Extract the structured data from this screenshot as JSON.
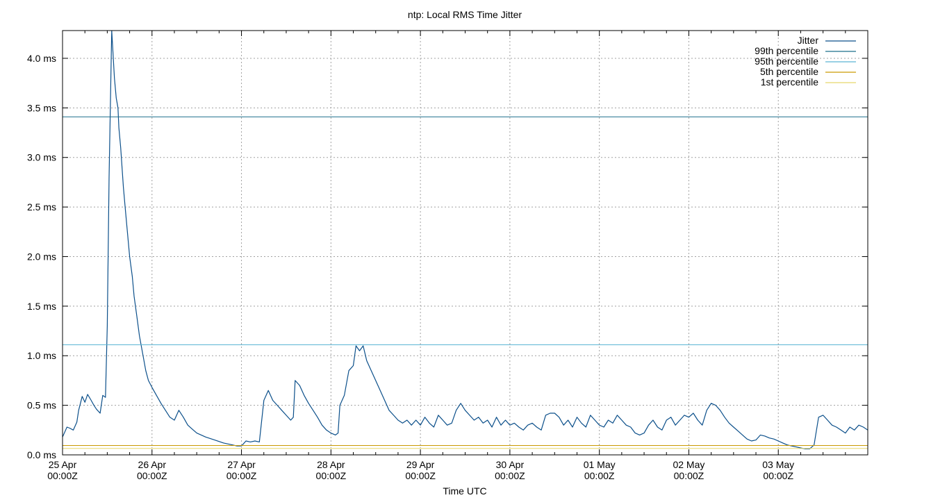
{
  "chart_data": {
    "type": "line",
    "title": "ntp: Local RMS Time Jitter",
    "xlabel": "Time UTC",
    "ylabel": "",
    "ylim": [
      0,
      4.28
    ],
    "y_unit": "ms",
    "yticks": [
      0.0,
      0.5,
      1.0,
      1.5,
      2.0,
      2.5,
      3.0,
      3.5,
      4.0
    ],
    "ytick_labels": [
      "0.0 ms",
      "0.5 ms",
      "1.0 ms",
      "1.5 ms",
      "2.0 ms",
      "2.5 ms",
      "3.0 ms",
      "3.5 ms",
      "4.0 ms"
    ],
    "xlim_days": [
      0,
      9
    ],
    "xticks": [
      {
        "day": 0,
        "line1": "25 Apr",
        "line2": "00:00Z"
      },
      {
        "day": 1,
        "line1": "26 Apr",
        "line2": "00:00Z"
      },
      {
        "day": 2,
        "line1": "27 Apr",
        "line2": "00:00Z"
      },
      {
        "day": 3,
        "line1": "28 Apr",
        "line2": "00:00Z"
      },
      {
        "day": 4,
        "line1": "29 Apr",
        "line2": "00:00Z"
      },
      {
        "day": 5,
        "line1": "30 Apr",
        "line2": "00:00Z"
      },
      {
        "day": 6,
        "line1": "01 May",
        "line2": "00:00Z"
      },
      {
        "day": 7,
        "line1": "02 May",
        "line2": "00:00Z"
      },
      {
        "day": 8,
        "line1": "03 May",
        "line2": "00:00Z"
      }
    ],
    "grid": true,
    "legend_position": "top-right",
    "series": [
      {
        "name": "Jitter",
        "color": "#0b4f8a",
        "x": [
          0.0,
          0.05,
          0.08,
          0.12,
          0.16,
          0.18,
          0.22,
          0.25,
          0.28,
          0.32,
          0.35,
          0.38,
          0.42,
          0.45,
          0.48,
          0.5,
          0.52,
          0.55,
          0.58,
          0.6,
          0.62,
          0.63,
          0.65,
          0.68,
          0.7,
          0.72,
          0.75,
          0.78,
          0.8,
          0.83,
          0.86,
          0.9,
          0.93,
          0.96,
          1.0,
          1.05,
          1.1,
          1.15,
          1.2,
          1.25,
          1.3,
          1.35,
          1.4,
          1.45,
          1.5,
          1.6,
          1.7,
          1.8,
          1.9,
          1.95,
          2.0,
          2.05,
          2.1,
          2.15,
          2.2,
          2.25,
          2.3,
          2.35,
          2.4,
          2.45,
          2.5,
          2.55,
          2.58,
          2.6,
          2.65,
          2.7,
          2.75,
          2.8,
          2.85,
          2.9,
          2.95,
          3.0,
          3.05,
          3.08,
          3.1,
          3.15,
          3.2,
          3.25,
          3.28,
          3.32,
          3.36,
          3.4,
          3.45,
          3.5,
          3.55,
          3.6,
          3.65,
          3.7,
          3.75,
          3.8,
          3.85,
          3.9,
          3.95,
          4.0,
          4.05,
          4.1,
          4.15,
          4.2,
          4.25,
          4.3,
          4.35,
          4.4,
          4.45,
          4.5,
          4.55,
          4.6,
          4.65,
          4.7,
          4.75,
          4.8,
          4.85,
          4.9,
          4.95,
          5.0,
          5.05,
          5.1,
          5.15,
          5.2,
          5.25,
          5.3,
          5.35,
          5.4,
          5.45,
          5.5,
          5.55,
          5.6,
          5.65,
          5.7,
          5.75,
          5.8,
          5.85,
          5.9,
          5.95,
          6.0,
          6.05,
          6.1,
          6.15,
          6.2,
          6.25,
          6.3,
          6.35,
          6.4,
          6.45,
          6.5,
          6.55,
          6.6,
          6.65,
          6.7,
          6.75,
          6.8,
          6.85,
          6.9,
          6.95,
          7.0,
          7.05,
          7.1,
          7.15,
          7.2,
          7.25,
          7.3,
          7.35,
          7.4,
          7.45,
          7.5,
          7.55,
          7.6,
          7.65,
          7.7,
          7.75,
          7.8,
          7.85,
          7.9,
          7.95,
          8.0,
          8.05,
          8.1,
          8.15,
          8.2,
          8.25,
          8.3,
          8.35,
          8.4,
          8.45,
          8.5,
          8.55,
          8.6,
          8.65,
          8.7,
          8.75,
          8.8,
          8.85,
          8.9,
          8.95,
          9.0
        ],
        "y": [
          0.18,
          0.28,
          0.27,
          0.25,
          0.33,
          0.45,
          0.59,
          0.53,
          0.61,
          0.55,
          0.5,
          0.46,
          0.42,
          0.6,
          0.58,
          1.3,
          2.8,
          4.28,
          3.8,
          3.6,
          3.5,
          3.3,
          3.1,
          2.7,
          2.5,
          2.3,
          2.0,
          1.8,
          1.6,
          1.4,
          1.2,
          1.0,
          0.85,
          0.75,
          0.68,
          0.6,
          0.52,
          0.45,
          0.38,
          0.35,
          0.45,
          0.38,
          0.3,
          0.26,
          0.22,
          0.18,
          0.15,
          0.12,
          0.1,
          0.09,
          0.09,
          0.14,
          0.13,
          0.14,
          0.13,
          0.55,
          0.65,
          0.55,
          0.5,
          0.45,
          0.4,
          0.35,
          0.38,
          0.75,
          0.7,
          0.6,
          0.52,
          0.45,
          0.38,
          0.3,
          0.25,
          0.22,
          0.2,
          0.22,
          0.5,
          0.6,
          0.85,
          0.9,
          1.1,
          1.05,
          1.1,
          0.95,
          0.85,
          0.75,
          0.65,
          0.55,
          0.45,
          0.4,
          0.35,
          0.32,
          0.35,
          0.3,
          0.35,
          0.3,
          0.38,
          0.32,
          0.28,
          0.4,
          0.35,
          0.3,
          0.32,
          0.45,
          0.52,
          0.45,
          0.4,
          0.35,
          0.38,
          0.32,
          0.35,
          0.28,
          0.38,
          0.3,
          0.35,
          0.3,
          0.32,
          0.28,
          0.25,
          0.3,
          0.32,
          0.28,
          0.25,
          0.4,
          0.42,
          0.42,
          0.38,
          0.3,
          0.35,
          0.28,
          0.38,
          0.32,
          0.28,
          0.4,
          0.35,
          0.3,
          0.28,
          0.35,
          0.32,
          0.4,
          0.35,
          0.3,
          0.28,
          0.22,
          0.2,
          0.22,
          0.3,
          0.35,
          0.28,
          0.25,
          0.35,
          0.38,
          0.3,
          0.35,
          0.4,
          0.38,
          0.42,
          0.35,
          0.3,
          0.45,
          0.52,
          0.5,
          0.45,
          0.38,
          0.32,
          0.28,
          0.24,
          0.2,
          0.16,
          0.14,
          0.15,
          0.2,
          0.19,
          0.17,
          0.16,
          0.14,
          0.12,
          0.1,
          0.09,
          0.08,
          0.07,
          0.06,
          0.06,
          0.1,
          0.38,
          0.4,
          0.35,
          0.3,
          0.28,
          0.25,
          0.22,
          0.28,
          0.25,
          0.3,
          0.28,
          0.25
        ]
      },
      {
        "name": "99th percentile",
        "color": "#1a6f8a",
        "y_const": 3.41
      },
      {
        "name": "95th percentile",
        "color": "#5ab4d4",
        "y_const": 1.11
      },
      {
        "name": "5th percentile",
        "color": "#c99a00",
        "y_const": 0.095
      },
      {
        "name": "1st percentile",
        "color": "#e8d86a",
        "y_const": 0.065
      }
    ]
  }
}
